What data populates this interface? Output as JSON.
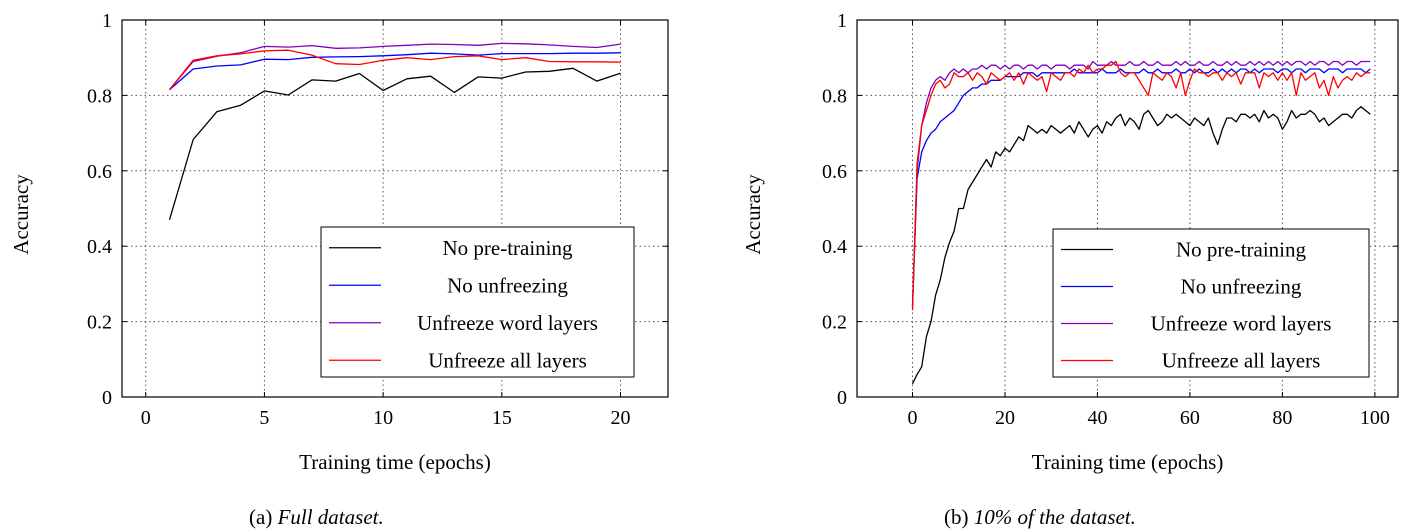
{
  "figure": {
    "captions": [
      {
        "label": "(a)",
        "text": "Full dataset."
      },
      {
        "label": "(b)",
        "text": "10% of the dataset."
      }
    ]
  },
  "chart_data": [
    {
      "type": "line",
      "title": "",
      "xlabel": "Training time (epochs)",
      "ylabel": "Accuracy",
      "xlim": [
        -1,
        22
      ],
      "ylim": [
        0,
        1
      ],
      "xticks": [
        0,
        5,
        10,
        15,
        20
      ],
      "yticks": [
        0,
        0.2,
        0.4,
        0.6,
        0.8,
        1
      ],
      "ytick_labels": [
        "0",
        "0.2",
        "0.4",
        "0.6",
        "0.8",
        "1"
      ],
      "grid": true,
      "legend_position": "bottom-right",
      "series": [
        {
          "name": "No pre-training",
          "color": "#000000",
          "x": [
            1,
            2,
            3,
            4,
            5,
            6,
            7,
            8,
            9,
            10,
            11,
            12,
            13,
            14,
            15,
            16,
            17,
            18,
            19,
            20
          ],
          "y": [
            0.47,
            0.683,
            0.757,
            0.774,
            0.812,
            0.801,
            0.841,
            0.838,
            0.858,
            0.813,
            0.844,
            0.851,
            0.808,
            0.849,
            0.846,
            0.862,
            0.864,
            0.872,
            0.838,
            0.859
          ]
        },
        {
          "name": "No unfreezing",
          "color": "#0000ff",
          "x": [
            1,
            2,
            3,
            4,
            5,
            6,
            7,
            8,
            9,
            10,
            11,
            12,
            13,
            14,
            15,
            16,
            17,
            18,
            19,
            20
          ],
          "y": [
            0.815,
            0.87,
            0.878,
            0.881,
            0.896,
            0.895,
            0.901,
            0.902,
            0.903,
            0.905,
            0.908,
            0.912,
            0.91,
            0.907,
            0.911,
            0.911,
            0.911,
            0.912,
            0.912,
            0.913
          ]
        },
        {
          "name": "Unfreeze word layers",
          "color": "#7f00bf",
          "x": [
            1,
            2,
            3,
            4,
            5,
            6,
            7,
            8,
            9,
            10,
            11,
            12,
            13,
            14,
            15,
            16,
            17,
            18,
            19,
            20
          ],
          "y": [
            0.815,
            0.89,
            0.904,
            0.913,
            0.93,
            0.928,
            0.932,
            0.925,
            0.926,
            0.93,
            0.933,
            0.936,
            0.935,
            0.933,
            0.938,
            0.937,
            0.934,
            0.93,
            0.927,
            0.936
          ]
        },
        {
          "name": "Unfreeze all layers",
          "color": "#ff0000",
          "x": [
            1,
            2,
            3,
            4,
            5,
            6,
            7,
            8,
            9,
            10,
            11,
            12,
            13,
            14,
            15,
            16,
            17,
            18,
            19,
            20
          ],
          "y": [
            0.815,
            0.893,
            0.905,
            0.91,
            0.918,
            0.92,
            0.907,
            0.884,
            0.882,
            0.893,
            0.9,
            0.895,
            0.903,
            0.905,
            0.895,
            0.9,
            0.89,
            0.889,
            0.889,
            0.888
          ]
        }
      ]
    },
    {
      "type": "line",
      "title": "",
      "xlabel": "Training time (epochs)",
      "ylabel": "Accuracy",
      "xlim": [
        -12,
        105
      ],
      "ylim": [
        0,
        1
      ],
      "xticks": [
        0,
        20,
        40,
        60,
        80,
        100
      ],
      "yticks": [
        0,
        0.2,
        0.4,
        0.6,
        0.8,
        1
      ],
      "ytick_labels": [
        "0",
        "0.2",
        "0.4",
        "0.6",
        "0.8",
        "1"
      ],
      "grid": true,
      "legend_position": "bottom-right",
      "series": [
        {
          "name": "No pre-training",
          "color": "#000000",
          "x": [
            0,
            1,
            2,
            3,
            4,
            5,
            6,
            7,
            8,
            9,
            10,
            11,
            12,
            13,
            14,
            15,
            16,
            17,
            18,
            19,
            20,
            21,
            22,
            23,
            24,
            25,
            26,
            27,
            28,
            29,
            30,
            31,
            32,
            33,
            34,
            35,
            36,
            37,
            38,
            39,
            40,
            41,
            42,
            43,
            44,
            45,
            46,
            47,
            48,
            49,
            50,
            51,
            52,
            53,
            54,
            55,
            56,
            57,
            58,
            59,
            60,
            61,
            62,
            63,
            64,
            65,
            66,
            67,
            68,
            69,
            70,
            71,
            72,
            73,
            74,
            75,
            76,
            77,
            78,
            79,
            80,
            81,
            82,
            83,
            84,
            85,
            86,
            87,
            88,
            89,
            90,
            91,
            92,
            93,
            94,
            95,
            96,
            97,
            98,
            99
          ],
          "y": [
            0.035,
            0.06,
            0.08,
            0.16,
            0.2,
            0.27,
            0.31,
            0.37,
            0.41,
            0.44,
            0.5,
            0.5,
            0.55,
            0.57,
            0.59,
            0.61,
            0.63,
            0.61,
            0.65,
            0.64,
            0.66,
            0.65,
            0.67,
            0.69,
            0.68,
            0.72,
            0.71,
            0.7,
            0.71,
            0.7,
            0.72,
            0.71,
            0.7,
            0.71,
            0.72,
            0.7,
            0.73,
            0.71,
            0.69,
            0.71,
            0.72,
            0.7,
            0.73,
            0.72,
            0.74,
            0.75,
            0.72,
            0.74,
            0.73,
            0.71,
            0.75,
            0.76,
            0.74,
            0.72,
            0.73,
            0.75,
            0.74,
            0.75,
            0.74,
            0.73,
            0.72,
            0.74,
            0.73,
            0.72,
            0.74,
            0.7,
            0.67,
            0.71,
            0.74,
            0.74,
            0.73,
            0.75,
            0.75,
            0.74,
            0.75,
            0.73,
            0.76,
            0.74,
            0.75,
            0.74,
            0.71,
            0.73,
            0.76,
            0.74,
            0.75,
            0.75,
            0.76,
            0.75,
            0.73,
            0.74,
            0.72,
            0.73,
            0.74,
            0.75,
            0.75,
            0.74,
            0.76,
            0.77,
            0.76,
            0.75
          ]
        },
        {
          "name": "No unfreezing",
          "color": "#0000ff",
          "x": [
            0,
            1,
            2,
            3,
            4,
            5,
            6,
            7,
            8,
            9,
            10,
            11,
            12,
            13,
            14,
            15,
            16,
            17,
            18,
            19,
            20,
            21,
            22,
            23,
            24,
            25,
            26,
            27,
            28,
            29,
            30,
            31,
            32,
            33,
            34,
            35,
            36,
            37,
            38,
            39,
            40,
            41,
            42,
            43,
            44,
            45,
            46,
            47,
            48,
            49,
            50,
            51,
            52,
            53,
            54,
            55,
            56,
            57,
            58,
            59,
            60,
            61,
            62,
            63,
            64,
            65,
            66,
            67,
            68,
            69,
            70,
            71,
            72,
            73,
            74,
            75,
            76,
            77,
            78,
            79,
            80,
            81,
            82,
            83,
            84,
            85,
            86,
            87,
            88,
            89,
            90,
            91,
            92,
            93,
            94,
            95,
            96,
            97,
            98,
            99
          ],
          "y": [
            0.24,
            0.58,
            0.65,
            0.68,
            0.7,
            0.71,
            0.73,
            0.74,
            0.75,
            0.76,
            0.78,
            0.8,
            0.81,
            0.82,
            0.82,
            0.83,
            0.83,
            0.84,
            0.84,
            0.84,
            0.85,
            0.85,
            0.85,
            0.85,
            0.86,
            0.86,
            0.86,
            0.85,
            0.86,
            0.86,
            0.86,
            0.86,
            0.86,
            0.86,
            0.86,
            0.87,
            0.86,
            0.86,
            0.86,
            0.86,
            0.86,
            0.87,
            0.86,
            0.86,
            0.86,
            0.87,
            0.86,
            0.86,
            0.86,
            0.86,
            0.87,
            0.86,
            0.86,
            0.87,
            0.86,
            0.86,
            0.86,
            0.87,
            0.86,
            0.86,
            0.87,
            0.86,
            0.87,
            0.86,
            0.86,
            0.87,
            0.86,
            0.87,
            0.86,
            0.87,
            0.86,
            0.87,
            0.87,
            0.86,
            0.87,
            0.86,
            0.87,
            0.87,
            0.87,
            0.86,
            0.87,
            0.87,
            0.86,
            0.87,
            0.87,
            0.86,
            0.87,
            0.87,
            0.87,
            0.86,
            0.87,
            0.87,
            0.87,
            0.86,
            0.87,
            0.87,
            0.87,
            0.87,
            0.86,
            0.87
          ]
        },
        {
          "name": "Unfreeze word layers",
          "color": "#7f00bf",
          "x": [
            0,
            1,
            2,
            3,
            4,
            5,
            6,
            7,
            8,
            9,
            10,
            11,
            12,
            13,
            14,
            15,
            16,
            17,
            18,
            19,
            20,
            21,
            22,
            23,
            24,
            25,
            26,
            27,
            28,
            29,
            30,
            31,
            32,
            33,
            34,
            35,
            36,
            37,
            38,
            39,
            40,
            41,
            42,
            43,
            44,
            45,
            46,
            47,
            48,
            49,
            50,
            51,
            52,
            53,
            54,
            55,
            56,
            57,
            58,
            59,
            60,
            61,
            62,
            63,
            64,
            65,
            66,
            67,
            68,
            69,
            70,
            71,
            72,
            73,
            74,
            75,
            76,
            77,
            78,
            79,
            80,
            81,
            82,
            83,
            84,
            85,
            86,
            87,
            88,
            89,
            90,
            91,
            92,
            93,
            94,
            95,
            96,
            97,
            98,
            99
          ],
          "y": [
            0.24,
            0.6,
            0.72,
            0.78,
            0.82,
            0.84,
            0.85,
            0.84,
            0.86,
            0.87,
            0.86,
            0.87,
            0.86,
            0.87,
            0.87,
            0.88,
            0.87,
            0.88,
            0.88,
            0.87,
            0.88,
            0.87,
            0.88,
            0.88,
            0.87,
            0.88,
            0.88,
            0.87,
            0.88,
            0.88,
            0.87,
            0.88,
            0.88,
            0.88,
            0.87,
            0.88,
            0.88,
            0.88,
            0.87,
            0.89,
            0.88,
            0.88,
            0.88,
            0.89,
            0.88,
            0.88,
            0.88,
            0.89,
            0.88,
            0.88,
            0.89,
            0.88,
            0.88,
            0.89,
            0.88,
            0.88,
            0.88,
            0.89,
            0.88,
            0.89,
            0.88,
            0.88,
            0.89,
            0.88,
            0.88,
            0.89,
            0.88,
            0.88,
            0.89,
            0.88,
            0.89,
            0.88,
            0.88,
            0.89,
            0.88,
            0.89,
            0.88,
            0.89,
            0.88,
            0.89,
            0.88,
            0.89,
            0.88,
            0.89,
            0.89,
            0.88,
            0.89,
            0.88,
            0.89,
            0.89,
            0.88,
            0.89,
            0.89,
            0.88,
            0.89,
            0.89,
            0.88,
            0.89,
            0.89,
            0.89
          ]
        },
        {
          "name": "Unfreeze all layers",
          "color": "#ff0000",
          "x": [
            0,
            1,
            2,
            3,
            4,
            5,
            6,
            7,
            8,
            9,
            10,
            11,
            12,
            13,
            14,
            15,
            16,
            17,
            18,
            19,
            20,
            21,
            22,
            23,
            24,
            25,
            26,
            27,
            28,
            29,
            30,
            31,
            32,
            33,
            34,
            35,
            36,
            37,
            38,
            39,
            40,
            41,
            42,
            43,
            44,
            45,
            46,
            47,
            48,
            49,
            50,
            51,
            52,
            53,
            54,
            55,
            56,
            57,
            58,
            59,
            60,
            61,
            62,
            63,
            64,
            65,
            66,
            67,
            68,
            69,
            70,
            71,
            72,
            73,
            74,
            75,
            76,
            77,
            78,
            79,
            80,
            81,
            82,
            83,
            84,
            85,
            86,
            87,
            88,
            89,
            90,
            91,
            92,
            93,
            94,
            95,
            96,
            97,
            98,
            99
          ],
          "y": [
            0.23,
            0.62,
            0.72,
            0.76,
            0.8,
            0.83,
            0.84,
            0.82,
            0.83,
            0.86,
            0.85,
            0.85,
            0.86,
            0.84,
            0.86,
            0.85,
            0.83,
            0.86,
            0.85,
            0.84,
            0.85,
            0.86,
            0.84,
            0.86,
            0.83,
            0.86,
            0.85,
            0.84,
            0.85,
            0.81,
            0.86,
            0.85,
            0.84,
            0.86,
            0.86,
            0.85,
            0.87,
            0.86,
            0.88,
            0.86,
            0.87,
            0.87,
            0.88,
            0.88,
            0.89,
            0.86,
            0.85,
            0.86,
            0.86,
            0.84,
            0.82,
            0.8,
            0.86,
            0.85,
            0.84,
            0.86,
            0.85,
            0.82,
            0.86,
            0.8,
            0.84,
            0.87,
            0.86,
            0.86,
            0.85,
            0.86,
            0.86,
            0.84,
            0.86,
            0.85,
            0.86,
            0.83,
            0.86,
            0.86,
            0.86,
            0.82,
            0.86,
            0.85,
            0.86,
            0.84,
            0.86,
            0.84,
            0.86,
            0.8,
            0.86,
            0.84,
            0.85,
            0.86,
            0.82,
            0.84,
            0.8,
            0.85,
            0.82,
            0.84,
            0.85,
            0.84,
            0.86,
            0.85,
            0.86,
            0.86
          ]
        }
      ]
    }
  ]
}
